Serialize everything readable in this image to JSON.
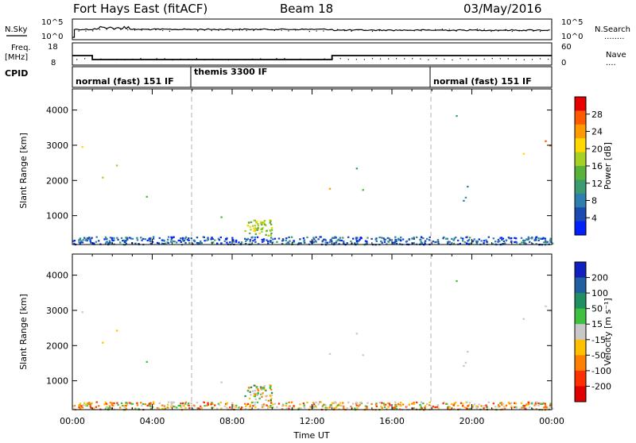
{
  "header": {
    "station": "Fort Hays East (fitACF)",
    "beam": "Beam 18",
    "date": "03/May/2016"
  },
  "noise_panel": {
    "left_label": "N.Sky",
    "left_ticks": [
      "10^5",
      "10^0"
    ],
    "right_ticks": [
      "10^5",
      "10^0"
    ],
    "right_label": "N.Search",
    "right_marker": "........"
  },
  "freq_panel": {
    "left_label_1": "Freq.",
    "left_label_2": "[MHz]",
    "left_ticks": [
      "18",
      "8"
    ],
    "right_ticks": [
      "60",
      "0"
    ],
    "right_label": "Nave",
    "right_marker": "....",
    "freq_steps": [
      {
        "t": 0.0,
        "f": 13
      },
      {
        "t": 1.0,
        "f": 10.5
      },
      {
        "t": 13.0,
        "f": 13
      },
      {
        "t": 24.0,
        "f": 13
      }
    ]
  },
  "cpid": {
    "label": "CPID",
    "modes": [
      {
        "text": "normal (fast) 151 IF",
        "start": 0.0
      },
      {
        "text": "themis 3300 IF",
        "start": 6.0
      },
      {
        "text": "normal (fast) 151 IF",
        "start": 18.0
      }
    ]
  },
  "chart_data": [
    {
      "type": "heatmap",
      "name": "power",
      "ylabel": "Slant Range [km]",
      "xlabel": "Time UT",
      "xlim": [
        0,
        24
      ],
      "ylim": [
        180,
        4600
      ],
      "yticks": [
        "1000",
        "2000",
        "3000",
        "4000"
      ],
      "xticks": [
        "00:00",
        "04:00",
        "08:00",
        "12:00",
        "16:00",
        "20:00",
        "00:00"
      ],
      "colorbar": {
        "label": "Power [dB]",
        "ticks": [
          "28",
          "24",
          "20",
          "16",
          "12",
          "8",
          "4"
        ],
        "colors": [
          "#0020ff",
          "#1c4ab0",
          "#2e7fae",
          "#3a9c70",
          "#58b23c",
          "#a6d024",
          "#ffd800",
          "#ff9a00",
          "#ff5a00",
          "#e80000"
        ],
        "range": [
          0,
          32
        ]
      },
      "mode_boundaries": [
        6.0,
        18.0
      ]
    },
    {
      "type": "heatmap",
      "name": "velocity",
      "ylabel": "Slant Range [km]",
      "xlabel": "Time UT",
      "xlim": [
        0,
        24
      ],
      "ylim": [
        180,
        4600
      ],
      "yticks": [
        "1000",
        "2000",
        "3000",
        "4000"
      ],
      "xticks": [
        "00:00",
        "04:00",
        "08:00",
        "12:00",
        "16:00",
        "20:00",
        "00:00"
      ],
      "colorbar": {
        "label": "Velocity [m s⁻¹]",
        "ticks": [
          "200",
          "100",
          "50",
          "15",
          "-15",
          "-50",
          "-100",
          "-200"
        ],
        "colors": [
          "#1020c0",
          "#2060a0",
          "#209060",
          "#40c040",
          "#c8c8c8",
          "#ffc000",
          "#ff8000",
          "#ff3000",
          "#e00000"
        ],
        "range": [
          -250,
          250
        ]
      },
      "mode_boundaries": [
        6.0,
        18.0
      ]
    }
  ],
  "echo_regions": [
    {
      "t0": 0.2,
      "t1": 1.3,
      "r0": 2200,
      "r1": 3200,
      "pw": 26,
      "vel": 5
    },
    {
      "t0": 1.1,
      "t1": 2.3,
      "r0": 1800,
      "r1": 2600,
      "pw": 18,
      "vel": -30
    },
    {
      "t0": 2.1,
      "t1": 3.2,
      "r0": 2400,
      "r1": 3500,
      "pw": 14,
      "vel": -20
    },
    {
      "t0": 2.8,
      "t1": 4.5,
      "r0": 950,
      "r1": 1600,
      "pw": 10,
      "vel": 60
    },
    {
      "t0": 7.3,
      "t1": 9.2,
      "r0": 800,
      "r1": 1600,
      "pw": 11,
      "vel": 5
    },
    {
      "t0": 8.6,
      "t1": 10.0,
      "r0": 450,
      "r1": 900,
      "pw": 17,
      "vel": 2
    },
    {
      "t0": 9.8,
      "t1": 10.8,
      "r0": 800,
      "r1": 1300,
      "pw": 19,
      "vel": 2
    },
    {
      "t0": 11.0,
      "t1": 13.0,
      "r0": 1600,
      "r1": 2400,
      "pw": 20,
      "vel": 0
    },
    {
      "t0": 13.0,
      "t1": 15.2,
      "r0": 1900,
      "r1": 2500,
      "pw": 10,
      "vel": 0
    },
    {
      "t0": 14.0,
      "t1": 20.5,
      "r0": 1700,
      "r1": 2100,
      "pw": 11,
      "vel": 0
    },
    {
      "t0": 14.5,
      "t1": 21.5,
      "r0": 1300,
      "r1": 1700,
      "pw": 8,
      "vel": 5
    },
    {
      "t0": 20.0,
      "t1": 24.0,
      "r0": 2300,
      "r1": 3300,
      "pw": 24,
      "vel": 0
    },
    {
      "t0": 18.3,
      "t1": 20.0,
      "r0": 2700,
      "r1": 4000,
      "pw": 8,
      "vel": 30
    },
    {
      "t0": 0.0,
      "t1": 24.0,
      "r0": 200,
      "r1": 420,
      "pw": 6,
      "vel": -60
    }
  ]
}
